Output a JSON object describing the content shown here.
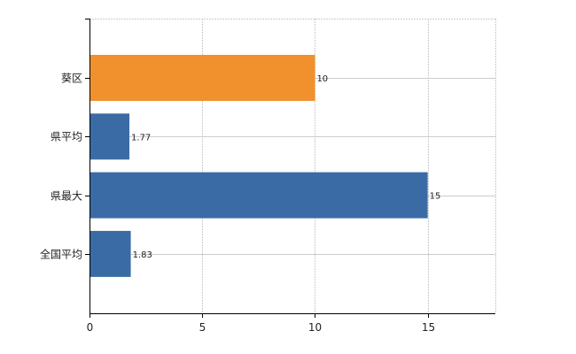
{
  "chart_data": {
    "type": "bar",
    "orientation": "horizontal",
    "title": "",
    "xlabel": "",
    "ylabel": "",
    "categories": [
      "葵区",
      "県平均",
      "県最大",
      "全国平均"
    ],
    "values": [
      10,
      1.77,
      15,
      1.83
    ],
    "data_labels": [
      "10",
      "1.77",
      "15",
      "1.83"
    ],
    "bar_colors": [
      "#f0912d",
      "#3b6ba5",
      "#3b6ba5",
      "#3b6ba5"
    ],
    "xlim": [
      0,
      18
    ],
    "xticks": [
      0,
      5,
      10,
      15
    ],
    "xtick_labels": [
      "0",
      "5",
      "10",
      "15"
    ],
    "grid": true,
    "legend": "none"
  }
}
